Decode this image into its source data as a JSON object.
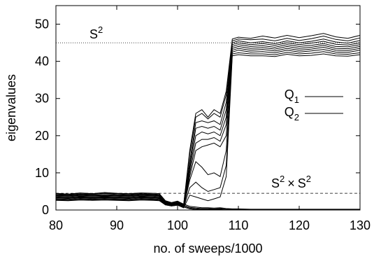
{
  "chart_data": {
    "type": "line",
    "title": "",
    "xlabel": "no. of sweeps/1000",
    "ylabel": "eigenvalues",
    "xlim": [
      80,
      130
    ],
    "ylim": [
      0,
      55
    ],
    "xticks": [
      80,
      90,
      100,
      110,
      120,
      130
    ],
    "yticks": [
      0,
      10,
      20,
      30,
      40,
      50
    ],
    "grid": false,
    "legend": {
      "placement": "right-middle",
      "entries": [
        {
          "base": "Q",
          "sub": "1"
        },
        {
          "base": "Q",
          "sub": "2"
        }
      ]
    },
    "reference_lines": [
      {
        "y": 45,
        "style": "dotted",
        "label_base": "S",
        "label_sup": "2",
        "label_position": "top-left"
      },
      {
        "y": 4.5,
        "style": "dashed",
        "label_base": "S",
        "label_sup": "2",
        "label_times": "×",
        "label_base2": "S",
        "label_sup2": "2",
        "label_position": "right"
      }
    ],
    "x": [
      80,
      82,
      84,
      86,
      88,
      90,
      92,
      94,
      96,
      97,
      98,
      99,
      100,
      101,
      102,
      103,
      104,
      105,
      106,
      107,
      108,
      109,
      110,
      112,
      114,
      116,
      118,
      120,
      122,
      124,
      126,
      128,
      130
    ],
    "series": [
      {
        "values": [
          4.5,
          4.3,
          4.6,
          4.4,
          4.7,
          4.5,
          4.4,
          4.6,
          4.5,
          4.4,
          2.5,
          2.0,
          2.4,
          1.5,
          16.0,
          26.0,
          27.0,
          25.0,
          27.0,
          26.0,
          32.0,
          46.0,
          46.5,
          46.2,
          46.8,
          46.3,
          47.0,
          46.4,
          46.9,
          47.5,
          46.6,
          46.2,
          47.0
        ]
      },
      {
        "values": [
          4.2,
          4.1,
          4.3,
          4.2,
          4.4,
          4.2,
          4.1,
          4.3,
          4.2,
          4.1,
          2.3,
          1.9,
          2.2,
          1.4,
          15.0,
          25.0,
          26.0,
          24.5,
          26.0,
          25.0,
          31.0,
          45.5,
          46.0,
          45.8,
          46.0,
          45.5,
          46.2,
          45.6,
          46.1,
          46.8,
          45.9,
          45.5,
          46.3
        ]
      },
      {
        "values": [
          4.0,
          3.9,
          4.1,
          4.0,
          4.1,
          4.0,
          3.9,
          4.1,
          4.0,
          3.9,
          2.2,
          1.8,
          2.0,
          1.3,
          13.0,
          23.5,
          24.0,
          23.5,
          24.0,
          23.0,
          29.0,
          45.0,
          45.5,
          45.0,
          45.3,
          44.8,
          45.5,
          45.0,
          45.4,
          46.0,
          45.2,
          44.9,
          45.6
        ]
      },
      {
        "values": [
          3.8,
          3.7,
          3.9,
          3.8,
          3.9,
          3.8,
          3.7,
          3.9,
          3.8,
          3.7,
          2.0,
          1.7,
          1.9,
          1.2,
          12.0,
          22.0,
          22.5,
          22.0,
          22.5,
          21.5,
          27.0,
          44.5,
          45.0,
          44.5,
          44.8,
          44.3,
          45.0,
          44.5,
          44.9,
          45.4,
          44.6,
          44.4,
          45.0
        ]
      },
      {
        "values": [
          3.6,
          3.5,
          3.7,
          3.6,
          3.7,
          3.6,
          3.5,
          3.7,
          3.6,
          3.5,
          1.9,
          1.6,
          1.8,
          1.1,
          11.0,
          20.0,
          21.0,
          20.5,
          21.0,
          20.0,
          25.0,
          44.0,
          44.5,
          44.0,
          44.2,
          43.8,
          44.5,
          44.0,
          44.3,
          44.8,
          44.0,
          43.9,
          44.5
        ]
      },
      {
        "values": [
          3.4,
          3.3,
          3.5,
          3.4,
          3.5,
          3.4,
          3.3,
          3.5,
          3.4,
          3.3,
          1.8,
          1.5,
          1.7,
          1.0,
          10.0,
          18.0,
          19.0,
          19.0,
          19.5,
          18.5,
          23.0,
          43.5,
          44.0,
          43.5,
          43.7,
          43.3,
          44.0,
          43.5,
          43.8,
          44.3,
          43.5,
          43.4,
          44.0
        ]
      },
      {
        "values": [
          3.2,
          3.1,
          3.3,
          3.2,
          3.3,
          3.2,
          3.1,
          3.3,
          3.2,
          3.1,
          1.7,
          1.4,
          1.6,
          0.9,
          9.0,
          16.0,
          17.0,
          17.5,
          18.0,
          17.0,
          20.0,
          43.0,
          43.5,
          43.0,
          43.2,
          42.8,
          43.5,
          43.0,
          43.3,
          43.8,
          43.0,
          42.9,
          43.5
        ]
      },
      {
        "values": [
          3.0,
          2.9,
          3.1,
          3.0,
          3.1,
          3.0,
          2.9,
          3.1,
          3.0,
          2.9,
          1.6,
          1.3,
          1.5,
          0.8,
          8.0,
          13.0,
          11.5,
          9.5,
          10.0,
          9.0,
          16.0,
          42.5,
          43.0,
          42.5,
          42.6,
          42.3,
          43.0,
          42.5,
          42.8,
          43.2,
          42.5,
          42.4,
          43.0
        ]
      },
      {
        "values": [
          2.8,
          2.7,
          2.9,
          2.8,
          2.9,
          2.8,
          2.7,
          2.9,
          2.8,
          2.7,
          1.5,
          1.2,
          1.4,
          0.7,
          6.0,
          7.5,
          6.0,
          5.0,
          5.5,
          6.0,
          12.0,
          42.0,
          42.3,
          42.0,
          42.0,
          41.8,
          42.4,
          42.0,
          42.2,
          42.6,
          42.0,
          41.9,
          42.3
        ]
      },
      {
        "values": [
          2.6,
          2.5,
          2.7,
          2.6,
          2.7,
          2.6,
          2.5,
          2.7,
          2.6,
          2.5,
          1.4,
          1.1,
          1.3,
          0.6,
          4.0,
          3.5,
          3.0,
          2.5,
          3.0,
          3.5,
          9.0,
          41.5,
          41.8,
          41.5,
          41.5,
          41.3,
          41.9,
          41.5,
          41.6,
          42.0,
          41.5,
          41.4,
          41.8
        ]
      },
      {
        "values": [
          4.4,
          4.2,
          4.5,
          4.3,
          4.5,
          4.4,
          4.3,
          4.4,
          4.3,
          4.2,
          2.4,
          1.9,
          2.3,
          1.6,
          1.0,
          0.8,
          0.6,
          0.6,
          0.5,
          0.6,
          0.4,
          0.3,
          0.3,
          0.2,
          0.2,
          0.2,
          0.2,
          0.2,
          0.2,
          0.2,
          0.2,
          0.2,
          0.2
        ]
      },
      {
        "values": [
          3.9,
          3.8,
          4.0,
          3.9,
          4.0,
          3.9,
          3.8,
          4.0,
          3.9,
          3.8,
          2.1,
          1.7,
          2.0,
          1.3,
          0.7,
          0.5,
          0.4,
          0.4,
          0.3,
          0.4,
          0.3,
          0.2,
          0.2,
          0.1,
          0.1,
          0.1,
          0.1,
          0.1,
          0.1,
          0.1,
          0.1,
          0.1,
          0.1
        ]
      },
      {
        "values": [
          3.3,
          3.2,
          3.4,
          3.3,
          3.4,
          3.3,
          3.2,
          3.4,
          3.3,
          3.2,
          1.7,
          1.4,
          1.6,
          1.0,
          0.5,
          0.3,
          0.2,
          0.2,
          0.2,
          0.2,
          0.1,
          0.1,
          0.1,
          0.0,
          0.0,
          0.0,
          0.0,
          0.0,
          0.0,
          0.0,
          0.0,
          0.0,
          0.0
        ]
      },
      {
        "values": [
          2.7,
          2.6,
          2.8,
          2.7,
          2.8,
          2.7,
          2.6,
          2.8,
          2.7,
          2.6,
          1.4,
          1.1,
          1.3,
          0.8,
          0.3,
          0.1,
          0.1,
          0.1,
          0.1,
          0.1,
          0.0,
          0.0,
          0.0,
          0.0,
          0.0,
          0.0,
          0.0,
          0.0,
          0.0,
          0.0,
          0.0,
          0.0,
          0.0
        ]
      }
    ]
  }
}
